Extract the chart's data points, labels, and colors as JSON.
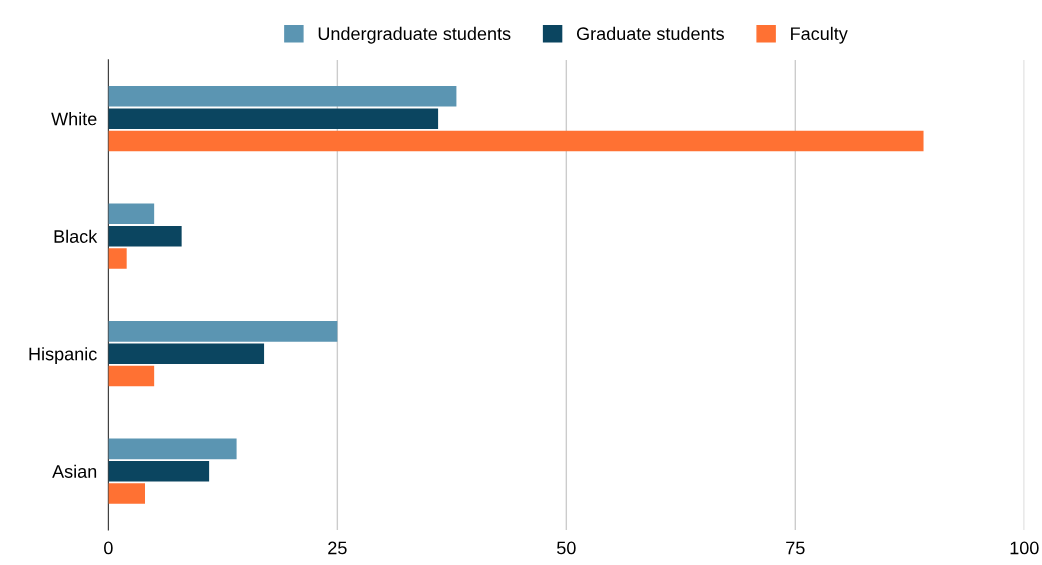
{
  "chart_data": {
    "type": "bar",
    "orientation": "horizontal",
    "categories": [
      "White",
      "Black",
      "Hispanic",
      "Asian"
    ],
    "series": [
      {
        "name": "Undergraduate students",
        "color": "#5b95b2",
        "values": [
          38,
          5,
          25,
          14
        ]
      },
      {
        "name": "Graduate students",
        "color": "#0b4560",
        "values": [
          36,
          8,
          17,
          11
        ]
      },
      {
        "name": "Faculty",
        "color": "#ff7133",
        "values": [
          89,
          2,
          5,
          4
        ]
      }
    ],
    "xlim": [
      0,
      100
    ],
    "xticks": [
      0,
      25,
      50,
      75,
      100
    ],
    "grid": "x",
    "legend": "top"
  }
}
